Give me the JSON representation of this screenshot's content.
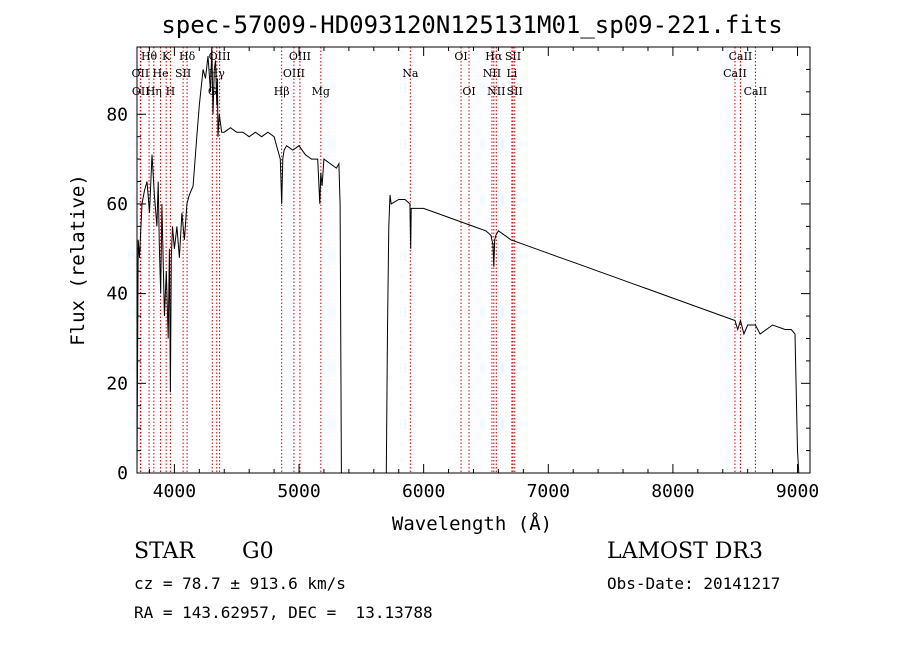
{
  "chart_data": {
    "type": "line",
    "title": "spec-57009-HD093120N125131M01_sp09-221.fits",
    "xlabel": "Wavelength (Å)",
    "ylabel": "Flux (relative)",
    "xlim": [
      3700,
      9100
    ],
    "ylim": [
      0,
      95
    ],
    "xticks": [
      4000,
      5000,
      6000,
      7000,
      8000,
      9000
    ],
    "yticks": [
      0,
      20,
      40,
      60,
      80
    ],
    "grid": false,
    "series": [
      {
        "name": "flux",
        "x": [
          3700,
          3710,
          3720,
          3740,
          3760,
          3780,
          3800,
          3820,
          3840,
          3860,
          3870,
          3880,
          3890,
          3900,
          3920,
          3935,
          3950,
          3960,
          3968,
          3975,
          3985,
          4000,
          4020,
          4040,
          4060,
          4080,
          4100,
          4120,
          4150,
          4180,
          4200,
          4230,
          4250,
          4270,
          4290,
          4300,
          4310,
          4320,
          4330,
          4340,
          4345,
          4350,
          4360,
          4380,
          4400,
          4450,
          4500,
          4550,
          4600,
          4650,
          4700,
          4750,
          4800,
          4830,
          4850,
          4861,
          4870,
          4880,
          4900,
          4950,
          5000,
          5050,
          5100,
          5150,
          5167,
          5175,
          5185,
          5200,
          5250,
          5300,
          5320,
          5330,
          5340,
          5700,
          5710,
          5720,
          5730,
          5740,
          5800,
          5850,
          5890,
          5893,
          5896,
          5900,
          5950,
          6000,
          6100,
          6200,
          6300,
          6400,
          6500,
          6540,
          6556,
          6563,
          6570,
          6580,
          6600,
          6650,
          6700,
          6800,
          6900,
          7000,
          7100,
          7200,
          7300,
          7400,
          7500,
          7600,
          7700,
          7800,
          7900,
          8000,
          8100,
          8200,
          8300,
          8400,
          8498,
          8520,
          8542,
          8570,
          8600,
          8662,
          8700,
          8800,
          8900,
          8950,
          8980,
          9000,
          9010
        ],
        "values": [
          0,
          52,
          48,
          60,
          63,
          65,
          58,
          71,
          62,
          55,
          65,
          50,
          40,
          60,
          35,
          45,
          30,
          50,
          18,
          48,
          55,
          50,
          55,
          48,
          58,
          52,
          60,
          62,
          64,
          75,
          82,
          90,
          88,
          93,
          85,
          95,
          80,
          90,
          92,
          82,
          88,
          75,
          80,
          76,
          76,
          77,
          76,
          76,
          75,
          76,
          75,
          76,
          75,
          72,
          70,
          60,
          70,
          72,
          73,
          72,
          73,
          71,
          70,
          70,
          60,
          67,
          64,
          70,
          69,
          68,
          69,
          60,
          0,
          0,
          32,
          55,
          62,
          60,
          61,
          61,
          60,
          55,
          50,
          59,
          59,
          59,
          58,
          57,
          56,
          55,
          54,
          53,
          51,
          46,
          52,
          53,
          54,
          53,
          52,
          51,
          50,
          49,
          48,
          47,
          46,
          45,
          44,
          43,
          42,
          41,
          40,
          39,
          38,
          37,
          36,
          35,
          34,
          32,
          34,
          31,
          33,
          33,
          31,
          33,
          32,
          32,
          31,
          5,
          0
        ]
      }
    ],
    "line_markers": [
      {
        "label": "Hθ",
        "wavelength": 3797,
        "row": 1
      },
      {
        "label": "OII",
        "wavelength": 3727,
        "row": 2
      },
      {
        "label": "OII",
        "wavelength": 3730,
        "row": 3
      },
      {
        "label": "K",
        "wavelength": 3934,
        "row": 1
      },
      {
        "label": "He",
        "wavelength": 3889,
        "row": 2
      },
      {
        "label": "Hη",
        "wavelength": 3835,
        "row": 3
      },
      {
        "label": "SII",
        "wavelength": 4070,
        "row": 2
      },
      {
        "label": "H",
        "wavelength": 3968,
        "row": 3
      },
      {
        "label": "Hδ",
        "wavelength": 4102,
        "row": 1
      },
      {
        "label": "OIII",
        "wavelength": 4363,
        "row": 1
      },
      {
        "label": "Hγ",
        "wavelength": 4340,
        "row": 2
      },
      {
        "label": "G",
        "wavelength": 4304,
        "row": 3
      },
      {
        "label": "OIII",
        "wavelength": 5007,
        "row": 1
      },
      {
        "label": "OIII",
        "wavelength": 4959,
        "row": 2
      },
      {
        "label": "Hβ",
        "wavelength": 4861,
        "row": 3
      },
      {
        "label": "Mg",
        "wavelength": 5175,
        "row": 3
      },
      {
        "label": "Na",
        "wavelength": 5893,
        "row": 2
      },
      {
        "label": "OI",
        "wavelength": 6300,
        "row": 1
      },
      {
        "label": "OI",
        "wavelength": 6364,
        "row": 3
      },
      {
        "label": "Hα",
        "wavelength": 6563,
        "row": 1
      },
      {
        "label": "NII",
        "wavelength": 6548,
        "row": 2
      },
      {
        "label": "NII",
        "wavelength": 6583,
        "row": 3
      },
      {
        "label": "SII",
        "wavelength": 6717,
        "row": 1
      },
      {
        "label": "Li",
        "wavelength": 6708,
        "row": 2
      },
      {
        "label": "SII",
        "wavelength": 6731,
        "row": 3
      },
      {
        "label": "CaII",
        "wavelength": 8542,
        "row": 1
      },
      {
        "label": "CaII",
        "wavelength": 8498,
        "row": 2
      },
      {
        "label": "CaII",
        "wavelength": 8662,
        "row": 3
      }
    ]
  },
  "info": {
    "class": "STAR",
    "subclass": "G0",
    "survey": "LAMOST DR3",
    "velocity": "cz = 78.7 ± 913.6 km/s",
    "obs_date": "Obs-Date: 20141217",
    "coords": "RA = 143.62957, DEC =  13.13788"
  },
  "colors": {
    "line": "#000000",
    "marker": "#cc0000"
  }
}
